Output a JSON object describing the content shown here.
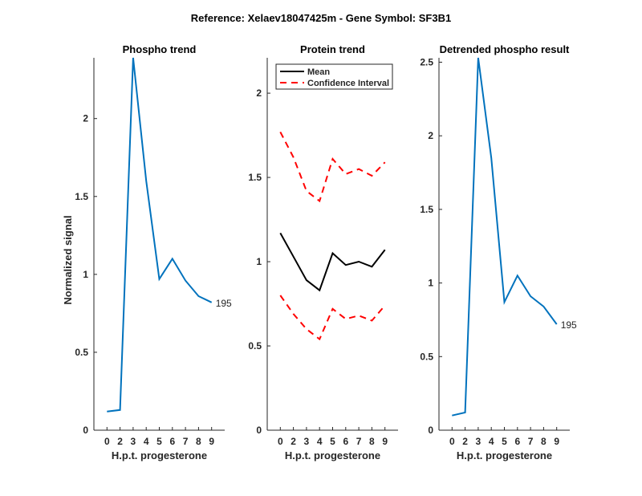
{
  "suptitle": "Reference:  Xelaev18047425m - Gene Symbol:  SF3B1",
  "chart_data": [
    {
      "type": "line",
      "title": "Phospho trend",
      "xlabel": "H.p.t. progesterone",
      "ylabel": "Normalized signal",
      "categories": [
        "0",
        "2",
        "3",
        "4",
        "5",
        "6",
        "7",
        "8",
        "9"
      ],
      "ylim": [
        0,
        2.39
      ],
      "yticks": [
        0,
        0.5,
        1,
        1.5,
        2
      ],
      "series": [
        {
          "name": "Phospho",
          "color": "#0072BD",
          "style": "solid",
          "values": [
            0.12,
            0.13,
            2.39,
            1.6,
            0.97,
            1.1,
            0.96,
            0.86,
            0.82
          ]
        }
      ],
      "annotation": "195"
    },
    {
      "type": "line",
      "title": "Protein trend",
      "xlabel": "H.p.t. progesterone",
      "ylabel": "",
      "categories": [
        "0",
        "2",
        "3",
        "4",
        "5",
        "6",
        "7",
        "8",
        "9"
      ],
      "ylim": [
        0,
        2.21
      ],
      "yticks": [
        0,
        0.5,
        1,
        1.5,
        2
      ],
      "legend": {
        "placement": "top",
        "entries": [
          "Mean",
          "Confidence Interval"
        ]
      },
      "series": [
        {
          "name": "Mean",
          "color": "#000000",
          "style": "solid",
          "values": [
            1.17,
            1.03,
            0.89,
            0.83,
            1.05,
            0.98,
            1.0,
            0.97,
            1.07
          ]
        },
        {
          "name": "Confidence Interval upper",
          "color": "#FF0000",
          "style": "dashed",
          "values": [
            1.77,
            1.62,
            1.42,
            1.36,
            1.61,
            1.52,
            1.55,
            1.51,
            1.59
          ]
        },
        {
          "name": "Confidence Interval lower",
          "color": "#FF0000",
          "style": "dashed",
          "values": [
            0.8,
            0.69,
            0.6,
            0.54,
            0.72,
            0.66,
            0.68,
            0.65,
            0.74
          ]
        }
      ]
    },
    {
      "type": "line",
      "title": "Detrended phospho result",
      "xlabel": "H.p.t. progesterone",
      "ylabel": "",
      "categories": [
        "0",
        "2",
        "3",
        "4",
        "5",
        "6",
        "7",
        "8",
        "9"
      ],
      "ylim": [
        0,
        2.53
      ],
      "yticks": [
        0,
        0.5,
        1,
        1.5,
        2,
        2.5
      ],
      "series": [
        {
          "name": "Detrended",
          "color": "#0072BD",
          "style": "solid",
          "values": [
            0.1,
            0.12,
            2.53,
            1.85,
            0.87,
            1.05,
            0.91,
            0.84,
            0.72
          ]
        }
      ],
      "annotation": "195"
    }
  ]
}
